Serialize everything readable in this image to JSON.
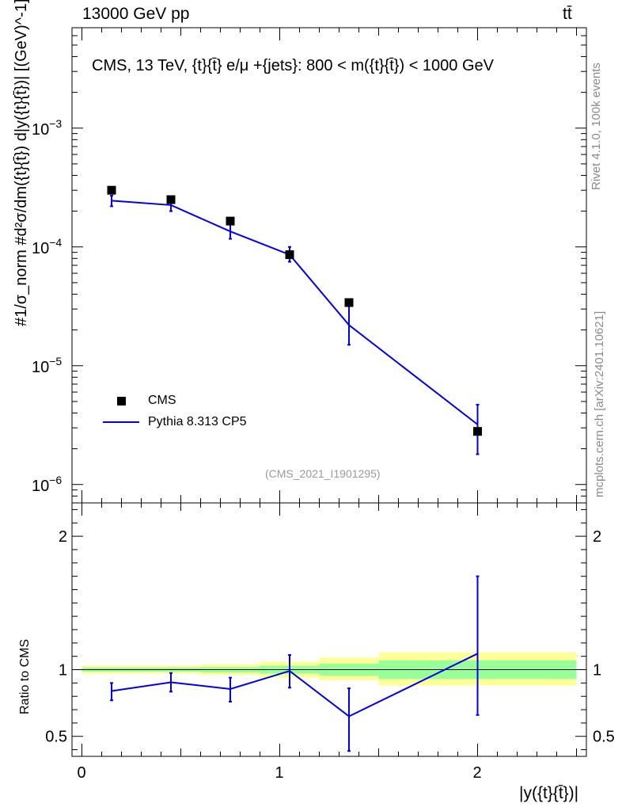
{
  "header": {
    "energy_label": "13000 GeV pp",
    "process_label": "tt̄"
  },
  "side_labels": {
    "rivet": "Rivet 4.1.0,  100k events",
    "mcplots": "mcplots.cern.ch [arXiv:2401.10621]"
  },
  "analysis_id": "(CMS_2021_I1901295)",
  "colors": {
    "data": "#000000",
    "mc": "#0000ee",
    "band_inner": "#99ff99",
    "band_outer": "#ffff99"
  },
  "chart_data": [
    {
      "type": "scatter",
      "title": "CMS, 13 TeV, {t}{t̄} e/μ +{jets}: 800 < m({t}{t̄}) < 1000 GeV",
      "ylabel": "#1/σ_norm #d²σ/dm({t}{t̄}) d|y({t}{t̄})| [(GeV)^-1]",
      "yscale": "log",
      "xlim": [
        -0.05,
        2.55
      ],
      "ylim": [
        7e-07,
        0.007
      ],
      "y_tick_labels": [
        "10^-6",
        "10^-5",
        "10^-4",
        "10^-3"
      ],
      "legend": [
        "CMS",
        "Pythia 8.313 CP5"
      ],
      "legend_position": "bottom-left",
      "series": [
        {
          "name": "CMS",
          "x": [
            0.15,
            0.45,
            0.75,
            1.05,
            1.35,
            2.0
          ],
          "y": [
            0.0003,
            0.00025,
            0.000165,
            8.6e-05,
            3.4e-05,
            2.8e-06
          ]
        },
        {
          "name": "Pythia 8.313 CP5",
          "x": [
            0.15,
            0.45,
            0.75,
            1.05,
            1.35,
            2.0
          ],
          "y": [
            0.000245,
            0.000225,
            0.000135,
            8.6e-05,
            2.2e-05,
            3.2e-06
          ],
          "err_low": [
            0.00022,
            0.0002,
            0.000117,
            7.5e-05,
            1.5e-05,
            1.8e-06
          ],
          "err_high": [
            0.00027,
            0.000245,
            0.000155,
            0.0001,
            3.2e-05,
            4.7e-06
          ]
        }
      ]
    },
    {
      "type": "line",
      "ylabel": "Ratio to CMS",
      "xlabel": "|y({t}{t̄})|",
      "xlim": [
        -0.05,
        2.55
      ],
      "ylim": [
        0.35,
        2.25
      ],
      "x_tick_labels": [
        "0",
        "1",
        "2"
      ],
      "y_tick_labels": [
        "0.5",
        "1",
        "2"
      ],
      "band_edges": [
        0,
        0.3,
        0.6,
        0.9,
        1.2,
        1.5,
        2.5
      ],
      "band_inner": [
        [
          0.985,
          1.015
        ],
        [
          0.985,
          1.015
        ],
        [
          0.98,
          1.02
        ],
        [
          0.97,
          1.03
        ],
        [
          0.955,
          1.045
        ],
        [
          0.93,
          1.07
        ]
      ],
      "band_outer": [
        [
          0.97,
          1.03
        ],
        [
          0.97,
          1.03
        ],
        [
          0.96,
          1.04
        ],
        [
          0.94,
          1.06
        ],
        [
          0.92,
          1.09
        ],
        [
          0.88,
          1.13
        ]
      ],
      "series": [
        {
          "name": "Pythia 8.313 CP5",
          "x": [
            0.15,
            0.45,
            0.75,
            1.05,
            1.35,
            2.0
          ],
          "y": [
            0.84,
            0.905,
            0.855,
            0.99,
            0.65,
            1.12
          ],
          "err_low": [
            0.77,
            0.835,
            0.76,
            0.865,
            0.39,
            0.66
          ],
          "err_high": [
            0.9,
            0.975,
            0.94,
            1.11,
            0.86,
            1.7
          ]
        }
      ]
    }
  ]
}
